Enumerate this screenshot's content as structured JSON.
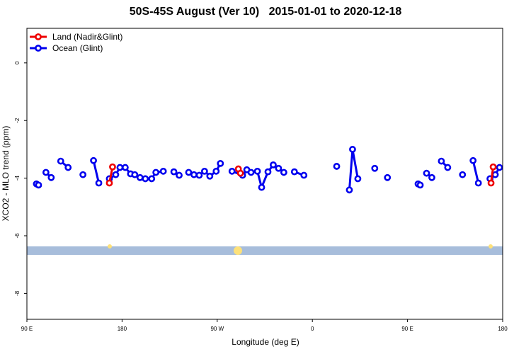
{
  "chart_data": {
    "type": "line",
    "title": "50S-45S August (Ver 10)   2015-01-01 to 2020-12-18",
    "x_label": "Longitude (deg E)",
    "y_label": "XCO2 - MLO trend (ppm)",
    "xlim": [
      90,
      540
    ],
    "ylim": [
      -8.9,
      1.2
    ],
    "xticks": [
      {
        "value": 90,
        "label": "90 E"
      },
      {
        "value": 180,
        "label": "180"
      },
      {
        "value": 270,
        "label": "90 W"
      },
      {
        "value": 360,
        "label": "0"
      },
      {
        "value": 450,
        "label": "90 E"
      },
      {
        "value": 540,
        "label": "180"
      }
    ],
    "yticks": [
      0,
      -2,
      -4,
      -6,
      -8
    ],
    "legend": "top-left",
    "series": [
      {
        "name": "Land (Nadir&Glint)",
        "color": "#ee0000",
        "x": [
          168,
          171,
          null,
          290,
          292,
          null,
          529,
          531
        ],
        "values": [
          -4.17,
          -3.61,
          null,
          -3.68,
          -3.83,
          null,
          -4.17,
          -3.61
        ]
      },
      {
        "name": "Ocean (Glint)",
        "color": "#0000ee",
        "x": [
          99,
          101,
          null,
          108,
          113,
          null,
          122,
          129,
          null,
          143,
          null,
          153,
          158,
          null,
          168,
          174,
          178,
          null,
          183,
          188,
          192,
          197,
          202,
          208,
          212,
          219,
          null,
          229,
          234,
          null,
          243,
          248,
          253,
          258,
          263,
          269,
          273,
          null,
          284,
          294,
          298,
          302,
          308,
          312,
          318,
          323,
          328,
          333,
          null,
          343,
          352,
          null,
          383,
          null,
          395,
          398,
          403,
          null,
          419,
          null,
          431,
          null,
          460,
          462,
          null,
          468,
          473,
          null,
          482,
          488,
          null,
          502,
          null,
          512,
          517,
          null,
          528,
          533,
          537
        ],
        "values": [
          -4.2,
          -4.24,
          null,
          -3.8,
          -3.98,
          null,
          -3.41,
          -3.63,
          null,
          -3.88,
          null,
          -3.39,
          -4.17,
          null,
          -4.02,
          -3.88,
          -3.63,
          null,
          -3.63,
          -3.85,
          -3.88,
          -3.98,
          -4.02,
          -4.02,
          -3.8,
          -3.76,
          null,
          -3.78,
          -3.9,
          null,
          -3.8,
          -3.88,
          -3.9,
          -3.76,
          -3.93,
          -3.76,
          -3.49,
          null,
          -3.76,
          -3.9,
          -3.71,
          -3.8,
          -3.76,
          -4.32,
          -3.78,
          -3.54,
          -3.66,
          -3.8,
          null,
          -3.78,
          -3.9,
          null,
          -3.59,
          null,
          -4.41,
          -3.0,
          -4.02,
          null,
          -3.66,
          null,
          -3.98,
          null,
          -4.2,
          -4.24,
          null,
          -3.83,
          -3.98,
          null,
          -3.41,
          -3.63,
          null,
          -3.88,
          null,
          -3.39,
          -4.17,
          null,
          -4.02,
          -3.88,
          -3.63
        ]
      }
    ]
  }
}
